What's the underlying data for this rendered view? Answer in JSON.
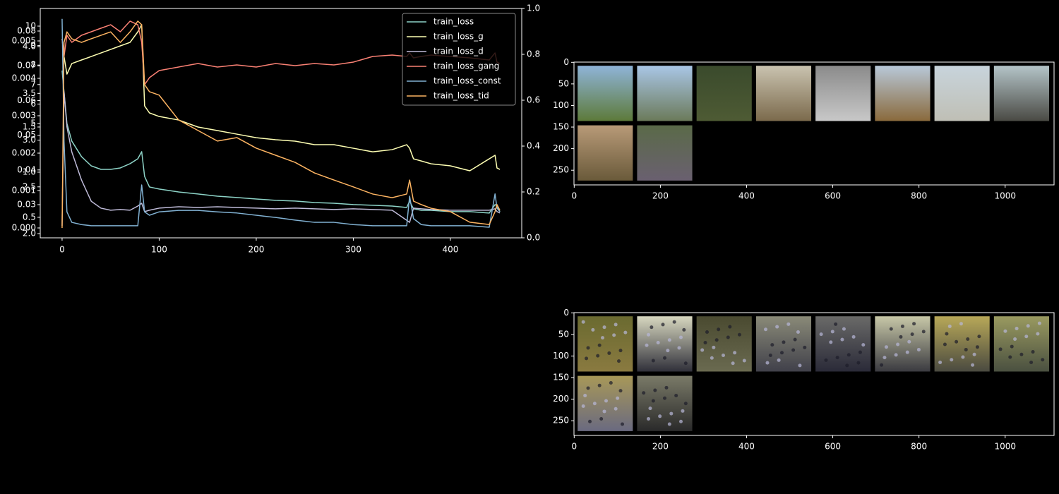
{
  "chart_data": [
    {
      "type": "line",
      "x": [
        0,
        2,
        5,
        10,
        20,
        30,
        40,
        50,
        60,
        70,
        78,
        82,
        85,
        90,
        100,
        120,
        140,
        160,
        180,
        200,
        220,
        240,
        260,
        280,
        300,
        320,
        340,
        355,
        358,
        362,
        370,
        380,
        400,
        420,
        440,
        446,
        448,
        451
      ],
      "xlim": [
        -22.5,
        473.5
      ],
      "xticks": [
        0,
        100,
        200,
        300,
        400
      ],
      "y2lim": [
        0,
        1
      ],
      "y2ticks": [
        {
          "value": 0,
          "label": "0.0"
        },
        {
          "value": 0.2,
          "label": "0.2"
        },
        {
          "value": 0.4,
          "label": "0.4"
        },
        {
          "value": 0.6,
          "label": "0.6"
        },
        {
          "value": 0.8,
          "label": "0.8"
        },
        {
          "value": 1,
          "label": "1.0"
        }
      ],
      "legend": "upper right",
      "series": [
        {
          "name": "train_loss",
          "color": "#8dd3c7",
          "ylim": [
            0.273,
            2.8125
          ],
          "yticks": [
            {
              "value": 0.5,
              "label": "0.5"
            },
            {
              "value": 1,
              "label": "1.0"
            },
            {
              "value": 1.5,
              "label": "1.5"
            }
          ],
          "values": [
            2.125,
            1.89,
            1.539,
            1.344,
            1.172,
            1.07,
            1.031,
            1.031,
            1.047,
            1.094,
            1.148,
            1.227,
            0.953,
            0.836,
            0.813,
            0.781,
            0.758,
            0.734,
            0.719,
            0.703,
            0.688,
            0.68,
            0.664,
            0.656,
            0.641,
            0.633,
            0.625,
            0.609,
            0.68,
            0.594,
            0.578,
            0.578,
            0.563,
            0.563,
            0.547,
            0.641,
            0.625,
            0.563
          ]
        },
        {
          "name": "train_loss_g",
          "color": "#feffb3",
          "ylim": [
            1.955,
            4.408
          ],
          "yticks": [
            {
              "value": 2,
              "label": "2.0"
            },
            {
              "value": 2.5,
              "label": "2.5"
            },
            {
              "value": 3,
              "label": "3.0"
            },
            {
              "value": 3.5,
              "label": "3.5"
            },
            {
              "value": 4,
              "label": "4.0"
            }
          ],
          "values": [
            4.083,
            3.894,
            3.706,
            3.819,
            3.857,
            3.894,
            3.932,
            3.97,
            4.008,
            4.045,
            4.158,
            4.234,
            3.366,
            3.291,
            3.253,
            3.215,
            3.14,
            3.102,
            3.064,
            3.026,
            3.004,
            2.989,
            2.951,
            2.951,
            2.913,
            2.875,
            2.898,
            2.951,
            2.913,
            2.8,
            2.777,
            2.747,
            2.725,
            2.672,
            2.8,
            2.838,
            2.702,
            2.687
          ]
        },
        {
          "name": "train_loss_d",
          "color": "#bfbbd9",
          "ylim": [
            0.02045,
            0.0865
          ],
          "yticks": [
            0.03,
            0.04,
            0.05,
            0.06,
            0.07,
            0.08
          ],
          "values": [
            0.0239,
            0.0625,
            0.0524,
            0.0452,
            0.0371,
            0.031,
            0.029,
            0.0284,
            0.0286,
            0.0284,
            0.0296,
            0.0304,
            0.028,
            0.0284,
            0.029,
            0.0294,
            0.0292,
            0.0294,
            0.0292,
            0.029,
            0.0288,
            0.029,
            0.0288,
            0.0286,
            0.0288,
            0.0286,
            0.0284,
            0.0255,
            0.0249,
            0.029,
            0.0288,
            0.0286,
            0.0284,
            0.0284,
            0.0284,
            0.0288,
            0.028,
            0.0276
          ]
        },
        {
          "name": "train_loss_gang",
          "color": "#fa8174",
          "ylim": [
            -0.87,
            10.906
          ],
          "yticks": [
            5,
            6,
            7,
            8,
            9,
            10
          ],
          "values": [
            9.348,
            8.442,
            9.529,
            9.167,
            9.529,
            9.71,
            9.891,
            10.072,
            9.71,
            10.254,
            10.072,
            9.167,
            6.993,
            7.355,
            7.717,
            7.899,
            8.08,
            7.899,
            8.007,
            7.899,
            8.08,
            7.971,
            8.08,
            8.007,
            8.152,
            8.442,
            8.514,
            8.442,
            8.623,
            8.37,
            8.442,
            8.514,
            8.442,
            8.37,
            8.261,
            8.623,
            8.152,
            8.08
          ]
        },
        {
          "name": "train_loss_const",
          "color": "#81b1d2",
          "ylim": [
            -0.000264,
            0.005868
          ],
          "yticks": [
            {
              "value": 0,
              "label": "0.000"
            },
            {
              "value": 0.001,
              "label": "0.001"
            },
            {
              "value": 0.002,
              "label": "0.002"
            },
            {
              "value": 0.003,
              "label": "0.003"
            },
            {
              "value": 0.004,
              "label": "0.004"
            },
            {
              "value": 0.005,
              "label": "0.005"
            }
          ],
          "values": [
            0.00559,
            0.00232,
            0.00043,
            0.00015,
            9e-05,
            6e-05,
            6e-05,
            6e-05,
            6e-05,
            6e-05,
            6e-05,
            0.00115,
            0.00043,
            0.00034,
            0.00043,
            0.00047,
            0.00047,
            0.00043,
            0.0004,
            0.00034,
            0.00028,
            0.00021,
            0.00015,
            0.00015,
            9e-05,
            6e-05,
            6e-05,
            6e-05,
            0.00085,
            0.00025,
            9e-05,
            6e-05,
            6e-05,
            6e-05,
            2e-05,
            0.00091,
            0.00053,
            0.00043
          ]
        },
        {
          "name": "train_loss_tid",
          "color": "#fdb462",
          "axis": "y2",
          "values": [
            0.043,
            0.852,
            0.898,
            0.868,
            0.852,
            0.868,
            0.883,
            0.898,
            0.852,
            0.898,
            0.945,
            0.929,
            0.668,
            0.637,
            0.622,
            0.514,
            0.468,
            0.422,
            0.437,
            0.391,
            0.36,
            0.329,
            0.283,
            0.252,
            0.222,
            0.191,
            0.175,
            0.191,
            0.252,
            0.16,
            0.145,
            0.129,
            0.114,
            0.068,
            0.058,
            0.114,
            0.145,
            0.12
          ]
        }
      ]
    },
    {
      "type": "image",
      "xlim": [
        -0.5,
        1113.5
      ],
      "xticks": [
        0,
        200,
        400,
        600,
        800,
        1000
      ],
      "ylim": [
        284,
        -0.5
      ],
      "yticks": [
        0,
        50,
        100,
        150,
        200,
        250
      ]
    },
    {
      "type": "image",
      "xlim": [
        -0.5,
        1113.5
      ],
      "xticks": [
        0,
        200,
        400,
        600,
        800,
        1000
      ],
      "ylim": [
        284,
        -0.5
      ],
      "yticks": [
        0,
        50,
        100,
        150,
        200,
        250
      ]
    }
  ]
}
